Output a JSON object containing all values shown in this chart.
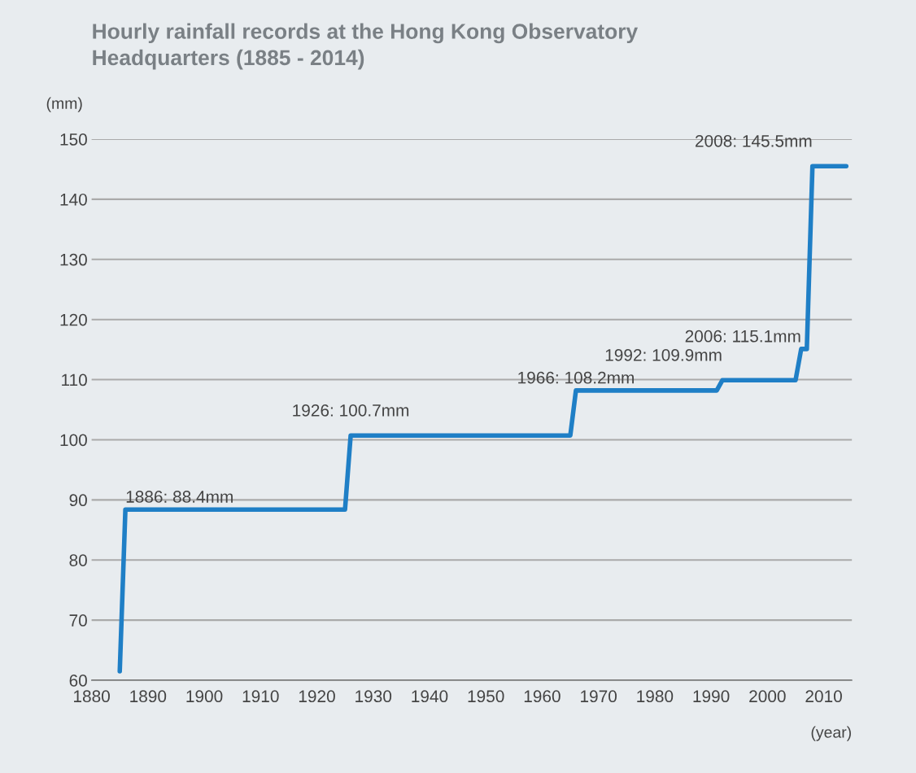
{
  "chart_data": {
    "type": "line",
    "title": "Hourly rainfall records at the Hong Kong Observatory\nHeadquarters (1885 - 2014)",
    "xlabel": "(year)",
    "ylabel": "(mm)",
    "x": [
      1885,
      1886,
      1925,
      1926,
      1965,
      1966,
      1991,
      1992,
      2005,
      2006,
      2007,
      2008,
      2014
    ],
    "series": [
      {
        "color": "#1f7fc6",
        "values": [
          61.5,
          88.4,
          88.4,
          100.7,
          100.7,
          108.2,
          108.2,
          109.9,
          109.9,
          115.1,
          115.1,
          145.5,
          145.5
        ]
      }
    ],
    "annotations": [
      {
        "text": "1886: 88.4mm",
        "x": 1886,
        "y": 88.4
      },
      {
        "text": "1926: 100.7mm",
        "x": 1926,
        "y": 100.7
      },
      {
        "text": "1966: 108.2mm",
        "x": 1966,
        "y": 108.2
      },
      {
        "text": "1992: 109.9mm",
        "x": 1992,
        "y": 109.9
      },
      {
        "text": "2006: 115.1mm",
        "x": 2006,
        "y": 115.1
      },
      {
        "text": "2008: 145.5mm",
        "x": 2008,
        "y": 145.5
      }
    ],
    "xlim": [
      1880,
      2015
    ],
    "xticks": [
      1880,
      1890,
      1900,
      1910,
      1920,
      1930,
      1940,
      1950,
      1960,
      1970,
      1980,
      1990,
      2000,
      2010
    ],
    "ylim": [
      60,
      150
    ],
    "yticks": [
      60,
      70,
      80,
      90,
      100,
      110,
      120,
      130,
      140,
      150
    ],
    "grid": "y",
    "legend": false,
    "marker": "none",
    "line_style": "solid"
  }
}
